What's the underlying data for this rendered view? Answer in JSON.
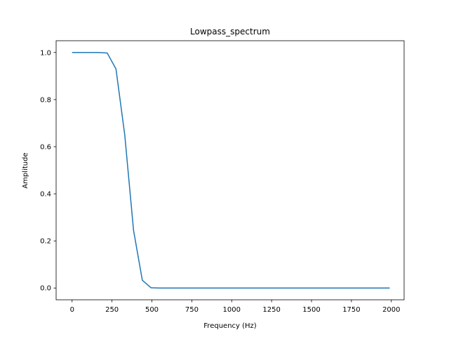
{
  "chart_data": {
    "type": "line",
    "title": "Lowpass_spectrum",
    "xlabel": "Frequency (Hz)",
    "ylabel": "Amplitude",
    "xlim": [
      -100,
      2080
    ],
    "ylim": [
      -0.05,
      1.05
    ],
    "xticks": [
      0,
      250,
      500,
      750,
      1000,
      1250,
      1500,
      1750,
      2000
    ],
    "yticks": [
      0.0,
      0.2,
      0.4,
      0.6,
      0.8,
      1.0
    ],
    "x_tick_labels": [
      "0",
      "250",
      "500",
      "750",
      "1000",
      "1250",
      "1500",
      "1750",
      "2000"
    ],
    "y_tick_labels": [
      "0.0",
      "0.2",
      "0.4",
      "0.6",
      "0.8",
      "1.0"
    ],
    "grid": false,
    "series": [
      {
        "color": "#1f77b4",
        "x": [
          0,
          55,
          110,
          165,
          220,
          275,
          330,
          385,
          440,
          495,
          550,
          600,
          1000,
          1500,
          1990
        ],
        "y": [
          1.0,
          1.0,
          1.0,
          1.0,
          0.998,
          0.93,
          0.65,
          0.245,
          0.033,
          0.001,
          0.0,
          0.0,
          0.0,
          0.0,
          0.0
        ]
      }
    ]
  }
}
